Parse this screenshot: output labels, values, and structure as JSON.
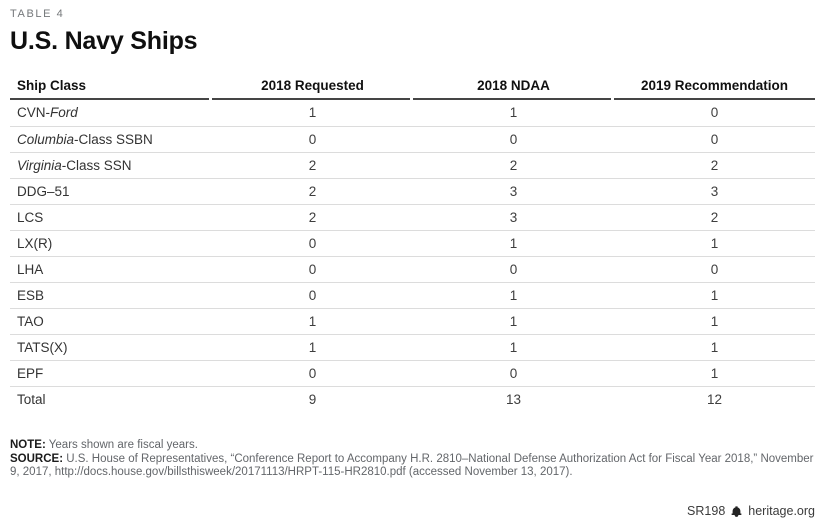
{
  "header": {
    "table_label": "TABLE 4",
    "title": "U.S. Navy Ships"
  },
  "table": {
    "columns": [
      "Ship Class",
      "2018 Requested",
      "2018 NDAA",
      "2019 Recommendation"
    ],
    "rows": [
      {
        "name": [
          {
            "text": "CVN-",
            "italic": false
          },
          {
            "text": "Ford",
            "italic": true
          }
        ],
        "values": [
          1,
          1,
          0
        ]
      },
      {
        "name": [
          {
            "text": "Columbia",
            "italic": true
          },
          {
            "text": "-Class SSBN",
            "italic": false
          }
        ],
        "values": [
          0,
          0,
          0
        ]
      },
      {
        "name": [
          {
            "text": "Virginia",
            "italic": true
          },
          {
            "text": "-Class SSN",
            "italic": false
          }
        ],
        "values": [
          2,
          2,
          2
        ]
      },
      {
        "name": [
          {
            "text": "DDG–51",
            "italic": false
          }
        ],
        "values": [
          2,
          3,
          3
        ]
      },
      {
        "name": [
          {
            "text": "LCS",
            "italic": false
          }
        ],
        "values": [
          2,
          3,
          2
        ]
      },
      {
        "name": [
          {
            "text": "LX(R)",
            "italic": false
          }
        ],
        "values": [
          0,
          1,
          1
        ]
      },
      {
        "name": [
          {
            "text": "LHA",
            "italic": false
          }
        ],
        "values": [
          0,
          0,
          0
        ]
      },
      {
        "name": [
          {
            "text": "ESB",
            "italic": false
          }
        ],
        "values": [
          0,
          1,
          1
        ]
      },
      {
        "name": [
          {
            "text": "TAO",
            "italic": false
          }
        ],
        "values": [
          1,
          1,
          1
        ]
      },
      {
        "name": [
          {
            "text": "TATS(X)",
            "italic": false
          }
        ],
        "values": [
          1,
          1,
          1
        ]
      },
      {
        "name": [
          {
            "text": "EPF",
            "italic": false
          }
        ],
        "values": [
          0,
          0,
          1
        ]
      },
      {
        "name": [
          {
            "text": "Total",
            "italic": false
          }
        ],
        "values": [
          9,
          13,
          12
        ],
        "total": true
      }
    ]
  },
  "chart_data": {
    "type": "table",
    "title": "U.S. Navy Ships",
    "subtitle": "TABLE 4",
    "columns": [
      "Ship Class",
      "2018 Requested",
      "2018 NDAA",
      "2019 Recommendation"
    ],
    "rows": [
      [
        "CVN-Ford",
        1,
        1,
        0
      ],
      [
        "Columbia-Class SSBN",
        0,
        0,
        0
      ],
      [
        "Virginia-Class SSN",
        2,
        2,
        2
      ],
      [
        "DDG–51",
        2,
        3,
        3
      ],
      [
        "LCS",
        2,
        3,
        2
      ],
      [
        "LX(R)",
        0,
        1,
        1
      ],
      [
        "LHA",
        0,
        0,
        0
      ],
      [
        "ESB",
        0,
        1,
        1
      ],
      [
        "TAO",
        1,
        1,
        1
      ],
      [
        "TATS(X)",
        1,
        1,
        1
      ],
      [
        "EPF",
        0,
        0,
        1
      ],
      [
        "Total",
        9,
        13,
        12
      ]
    ]
  },
  "notes": {
    "note_label": "NOTE:",
    "note_text": "Years shown are fiscal years.",
    "source_label": "SOURCE:",
    "source_text": "U.S. House of Representatives, “Conference Report to Accompany H.R. 2810–National Defense Authorization Act for Fiscal Year 2018,” November 9, 2017, http://docs.house.gov/billsthisweek/20171113/HRPT-115-HR2810.pdf (accessed November 13, 2017)."
  },
  "footer": {
    "report_id": "SR198",
    "site": "heritage.org"
  },
  "colors": {
    "eyebrow_gray": "#75787B",
    "title_black": "#0f0f0f",
    "header_rule": "#454545",
    "row_divider": "#dcdcdc",
    "note_gray": "#63666A"
  }
}
